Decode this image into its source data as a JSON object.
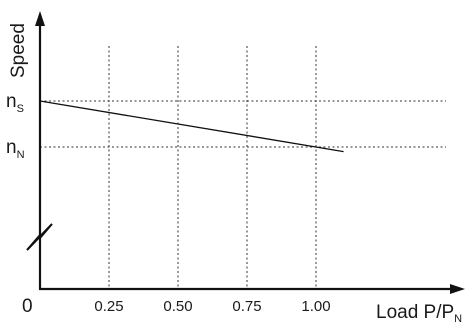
{
  "chart_data": {
    "type": "line",
    "title": "",
    "xlabel": {
      "main": "Load P/P",
      "sub": "N"
    },
    "ylabel": "Speed",
    "origin_label": "0",
    "x_ticks": [
      {
        "value": 0.25,
        "label": "0.25"
      },
      {
        "value": 0.5,
        "label": "0.50"
      },
      {
        "value": 0.75,
        "label": "0.75"
      },
      {
        "value": 1.0,
        "label": "1.00"
      }
    ],
    "y_ticks": [
      {
        "value": 1.0,
        "main": "n",
        "sub": "S"
      },
      {
        "value": 0.95,
        "main": "n",
        "sub": "N"
      }
    ],
    "axis_break": true,
    "series": [
      {
        "x": [
          0,
          1.1
        ],
        "y": [
          1.0,
          0.945
        ]
      }
    ],
    "grid": {
      "x": true,
      "y": true,
      "style": "dotted"
    }
  }
}
